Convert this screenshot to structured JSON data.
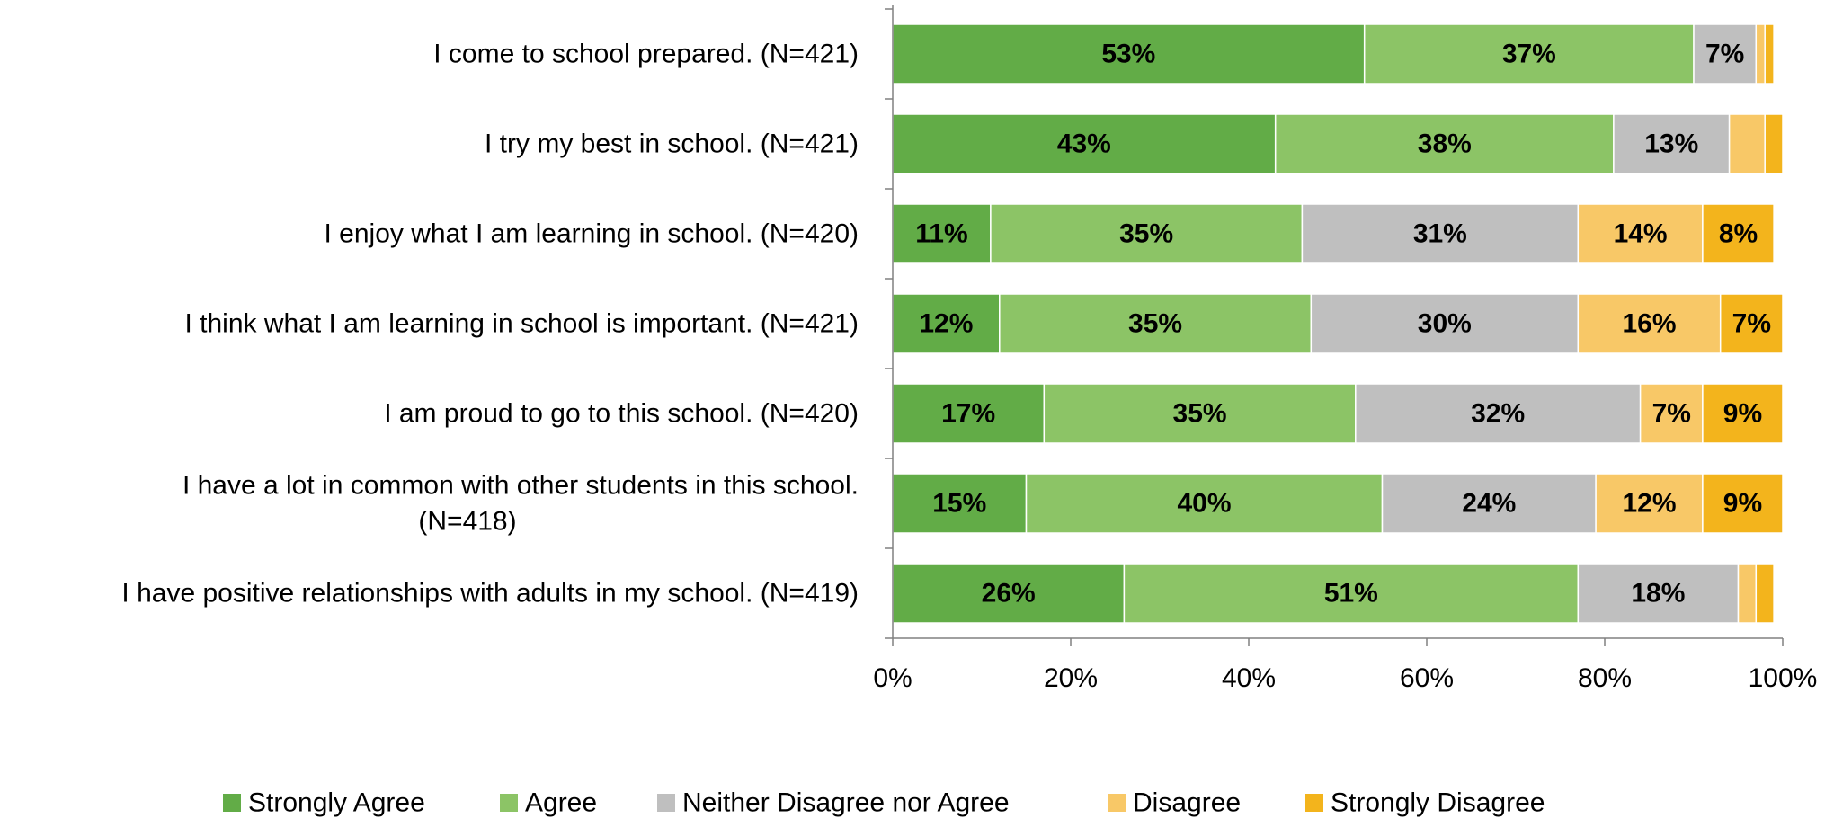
{
  "chart_data": {
    "type": "bar",
    "orientation": "horizontal",
    "stacked": true,
    "categories": [
      [
        "I come to school prepared. (N=421)"
      ],
      [
        "I try my best in school. (N=421)"
      ],
      [
        "I enjoy what I am learning in school. (N=420)"
      ],
      [
        "I think what I am learning in school is important. (N=421)"
      ],
      [
        "I am proud to go to this school. (N=420)"
      ],
      [
        "I have a lot in common with other students in this school.",
        "(N=418)"
      ],
      [
        "I have positive relationships with adults in my school. (N=419)"
      ]
    ],
    "series": [
      {
        "name": "Strongly Agree",
        "color": "#62AC47",
        "values": [
          53,
          43,
          11,
          12,
          17,
          15,
          26
        ]
      },
      {
        "name": "Agree",
        "color": "#8CC466",
        "values": [
          37,
          38,
          35,
          35,
          35,
          40,
          51
        ]
      },
      {
        "name": "Neither Disagree nor Agree",
        "color": "#BFBFBF",
        "values": [
          7,
          13,
          31,
          30,
          32,
          24,
          18
        ]
      },
      {
        "name": "Disagree",
        "color": "#F8C867",
        "values": [
          1,
          4,
          14,
          16,
          7,
          12,
          2
        ]
      },
      {
        "name": "Strongly Disagree",
        "color": "#F3B41C",
        "values": [
          1,
          2,
          8,
          7,
          9,
          9,
          2
        ]
      }
    ],
    "data_labels": [
      [
        "53%",
        "37%",
        "7%",
        "",
        ""
      ],
      [
        "43%",
        "38%",
        "13%",
        "",
        ""
      ],
      [
        "11%",
        "35%",
        "31%",
        "14%",
        "8%"
      ],
      [
        "12%",
        "35%",
        "30%",
        "16%",
        "7%"
      ],
      [
        "17%",
        "35%",
        "32%",
        "7%",
        "9%"
      ],
      [
        "15%",
        "40%",
        "24%",
        "12%",
        "9%"
      ],
      [
        "26%",
        "51%",
        "18%",
        "",
        ""
      ]
    ],
    "x_ticks": [
      "0%",
      "20%",
      "40%",
      "60%",
      "80%",
      "100%"
    ],
    "xlim": [
      0,
      100
    ],
    "grid": false,
    "legend_position": "bottom"
  }
}
